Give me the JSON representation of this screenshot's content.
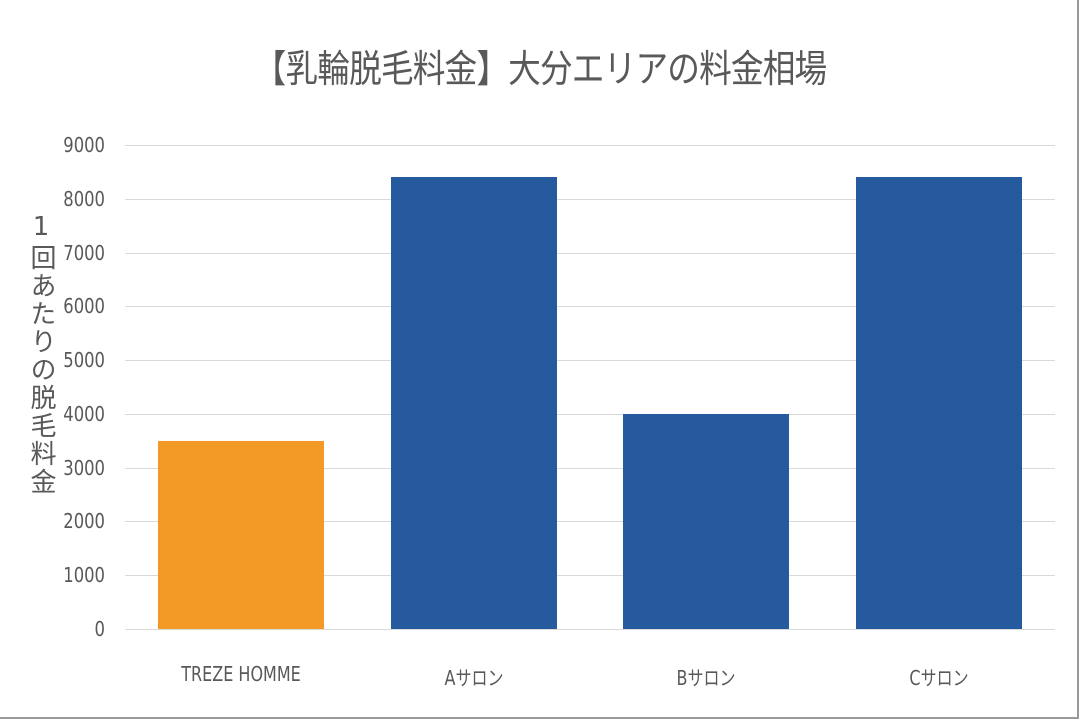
{
  "chart_data": {
    "type": "bar",
    "title": "【乳輪脱毛料金】大分エリアの料金相場",
    "xlabel": "",
    "ylabel": "1回あたりの脱毛料金",
    "categories": [
      "TREZE HOMME",
      "Aサロン",
      "Bサロン",
      "Cサロン"
    ],
    "values": [
      3500,
      8400,
      4000,
      8400
    ],
    "colors": [
      "#f29a25",
      "#265a9e",
      "#265a9e",
      "#265a9e"
    ],
    "ylim": [
      0,
      9000
    ],
    "yticks": [
      0,
      1000,
      2000,
      3000,
      4000,
      5000,
      6000,
      7000,
      8000,
      9000
    ],
    "grid": true,
    "legend": null
  },
  "labels": {
    "yticks": [
      "0",
      "1000",
      "2000",
      "3000",
      "4000",
      "5000",
      "6000",
      "7000",
      "8000",
      "9000"
    ]
  }
}
